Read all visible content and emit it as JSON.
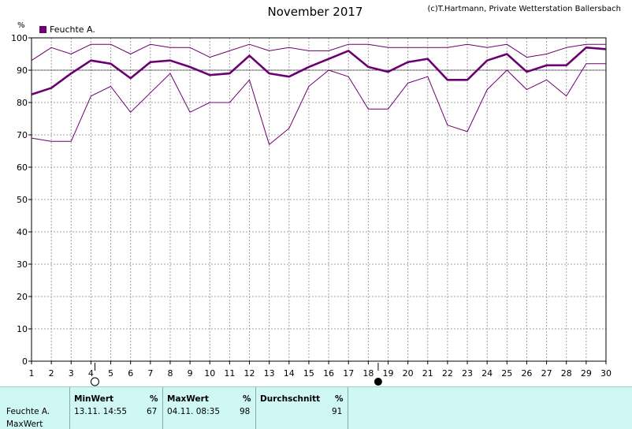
{
  "header": {
    "title": "November 2017",
    "credit": "(c)T.Hartmann, Private Wetterstation Ballersbach",
    "unit": "%",
    "legend_label": "Feuchte A."
  },
  "colors": {
    "series": "#6c0070",
    "grid": "#a0a0a0",
    "table_bg": "#cff8f4"
  },
  "chart_data": {
    "type": "line",
    "x": [
      1,
      2,
      3,
      4,
      5,
      6,
      7,
      8,
      9,
      10,
      11,
      12,
      13,
      14,
      15,
      16,
      17,
      18,
      19,
      20,
      21,
      22,
      23,
      24,
      25,
      26,
      27,
      28,
      29,
      30
    ],
    "ylim": [
      0,
      100
    ],
    "xlim": [
      1,
      30
    ],
    "yticks": [
      0,
      10,
      20,
      30,
      40,
      50,
      60,
      70,
      80,
      90,
      100
    ],
    "grid": true,
    "moon_phases": [
      {
        "x": 4.2,
        "phase": "full"
      },
      {
        "x": 18.5,
        "phase": "new"
      }
    ],
    "series": [
      {
        "name": "Feuchte A.",
        "role": "avg",
        "values": [
          82.5,
          84.5,
          89,
          93,
          92,
          87.5,
          92.5,
          93,
          91,
          88.5,
          89,
          94.5,
          89,
          88,
          91,
          93.5,
          96,
          91,
          89.5,
          92.5,
          93.5,
          87,
          87,
          93,
          95,
          89.5,
          91.5,
          91.5,
          97,
          96.5
        ]
      },
      {
        "role": "max",
        "values": [
          93,
          97,
          95,
          98,
          98,
          95,
          98,
          97,
          97,
          94,
          96,
          98,
          96,
          97,
          96,
          96,
          98,
          98,
          97,
          97,
          97,
          97,
          98,
          97,
          98,
          94,
          95,
          97,
          98,
          98
        ]
      },
      {
        "role": "min",
        "values": [
          69,
          68,
          68,
          82,
          85,
          77,
          83,
          89,
          77,
          80,
          80,
          87,
          67,
          72,
          85,
          90,
          88,
          78,
          78,
          86,
          88,
          73,
          71,
          84,
          90,
          84,
          87,
          82,
          92,
          92
        ]
      }
    ]
  },
  "table": {
    "row_label": "Feuchte A.",
    "row_label2": "MaxWert",
    "min_header": "MinWert",
    "min_unit": "%",
    "min_time": "13.11.  14:55",
    "min_value": "67",
    "max_header": "MaxWert",
    "max_unit": "%",
    "max_time": "04.11.  08:35",
    "max_value": "98",
    "avg_header": "Durchschnitt",
    "avg_unit": "%",
    "avg_value": "91"
  }
}
